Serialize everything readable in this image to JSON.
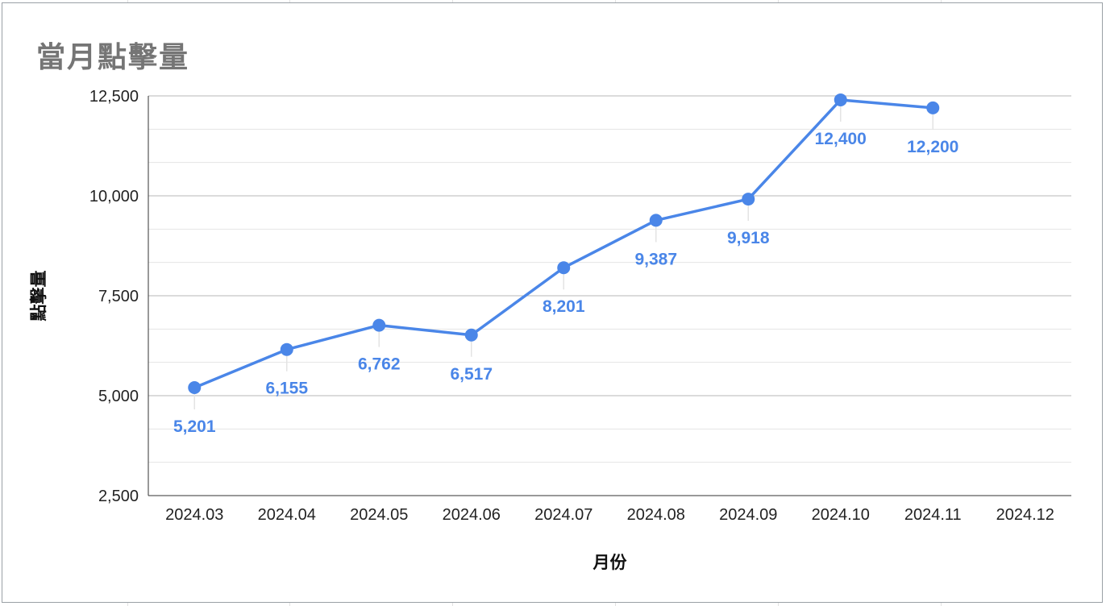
{
  "chart_data": {
    "type": "line",
    "title": "當月點擊量",
    "xlabel": "月份",
    "ylabel": "點擊量",
    "categories": [
      "2024.03",
      "2024.04",
      "2024.05",
      "2024.06",
      "2024.07",
      "2024.08",
      "2024.09",
      "2024.10",
      "2024.11",
      "2024.12"
    ],
    "series": [
      {
        "values": [
          5201,
          6155,
          6762,
          6517,
          8201,
          9387,
          9918,
          12400,
          12200,
          null
        ],
        "labels": [
          "5,201",
          "6,155",
          "6,762",
          "6,517",
          "8,201",
          "9,387",
          "9,918",
          "12,400",
          "12,200",
          null
        ],
        "label_position": [
          "below",
          "below",
          "below",
          "below",
          "below",
          "below",
          "below",
          "below",
          "below",
          null
        ]
      }
    ],
    "ylim": [
      2500,
      12500
    ],
    "y_ticks": [
      2500,
      5000,
      7500,
      10000,
      12500
    ],
    "y_tick_labels": [
      "2,500",
      "5,000",
      "7,500",
      "10,000",
      "12,500"
    ],
    "minor_grid": true,
    "legend": "none",
    "colors": {
      "line": "#4a86e8",
      "grid_major": "#b7b7b7",
      "grid_minor": "#e5e5e5",
      "title": "#757575"
    }
  }
}
